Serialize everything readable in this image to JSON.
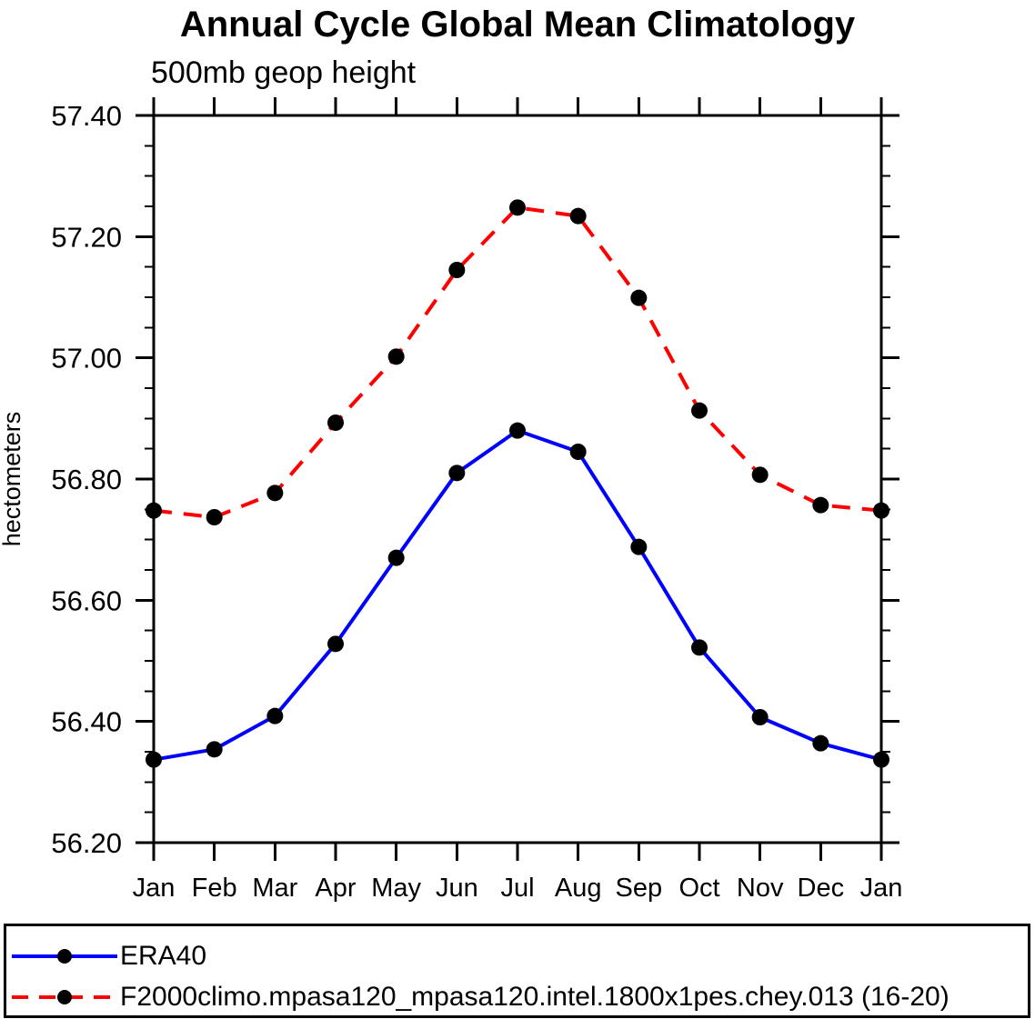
{
  "chart_data": {
    "type": "line",
    "title": "Annual Cycle Global Mean Climatology",
    "subtitle": "500mb geop height",
    "ylabel": "hectometers",
    "xlabel": "",
    "categories": [
      "Jan",
      "Feb",
      "Mar",
      "Apr",
      "May",
      "Jun",
      "Jul",
      "Aug",
      "Sep",
      "Oct",
      "Nov",
      "Dec",
      "Jan"
    ],
    "series": [
      {
        "name": "ERA40",
        "color": "#0000ff",
        "line_style": "solid",
        "marker": "filled-circle",
        "marker_color": "#000000",
        "values": [
          56.337,
          56.354,
          56.409,
          56.528,
          56.67,
          56.81,
          56.88,
          56.845,
          56.688,
          56.522,
          56.407,
          56.364,
          56.337
        ]
      },
      {
        "name": "F2000climo.mpasa120_mpasa120.intel.1800x1pes.chey.013 (16-20)",
        "color": "#ff0000",
        "line_style": "dashed",
        "marker": "filled-circle",
        "marker_color": "#000000",
        "values": [
          56.748,
          56.737,
          56.777,
          56.893,
          57.002,
          57.145,
          57.248,
          57.234,
          57.099,
          56.913,
          56.807,
          56.757,
          56.748
        ]
      }
    ],
    "ylim": [
      56.2,
      57.4
    ],
    "ytick_major_interval": 0.2,
    "ytick_minor_interval": 0.05,
    "ytick_label_format": "2-decimals",
    "grid": false,
    "legend_position": "bottom",
    "axis_color": "#000000",
    "background_color": "#ffffff"
  }
}
